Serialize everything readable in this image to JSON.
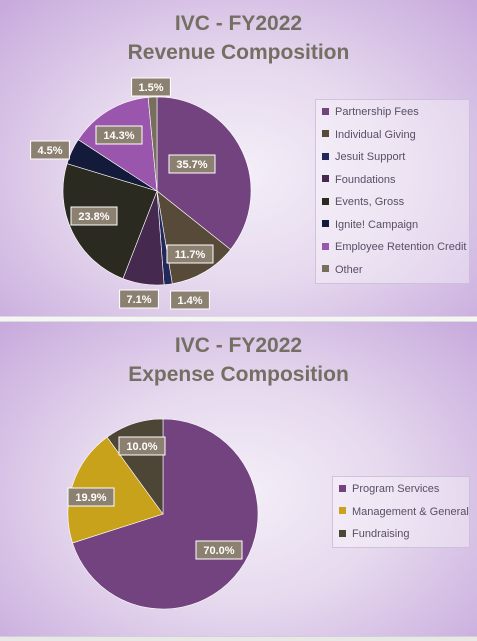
{
  "chart_data": [
    {
      "type": "pie",
      "title_line1": "IVC - FY2022",
      "title_line2": "Revenue Composition",
      "categories": [
        "Partnership Fees",
        "Individual Giving",
        "Jesuit Support",
        "Foundations",
        "Events, Gross",
        "Ignite! Campaign",
        "Employee Retention Credit",
        "Other"
      ],
      "values": [
        35.7,
        11.7,
        1.4,
        7.1,
        23.8,
        4.5,
        14.3,
        1.5
      ],
      "labels": [
        "35.7%",
        "11.7%",
        "1.4%",
        "7.1%",
        "23.8%",
        "4.5%",
        "14.3%",
        "1.5%"
      ],
      "colors": [
        "#73437f",
        "#574a39",
        "#23285a",
        "#45294f",
        "#2b2a20",
        "#141a3a",
        "#9a56ad",
        "#786e5c"
      ],
      "legend_position": "right"
    },
    {
      "type": "pie",
      "title_line1": "IVC - FY2022",
      "title_line2": "Expense Composition",
      "categories": [
        "Program Services",
        "Management & General",
        "Fundraising"
      ],
      "values": [
        70.0,
        19.9,
        10.0
      ],
      "labels": [
        "70.0%",
        "19.9%",
        "10.0%"
      ],
      "colors": [
        "#73437f",
        "#c9a21c",
        "#4d4637"
      ],
      "legend_position": "right"
    }
  ]
}
